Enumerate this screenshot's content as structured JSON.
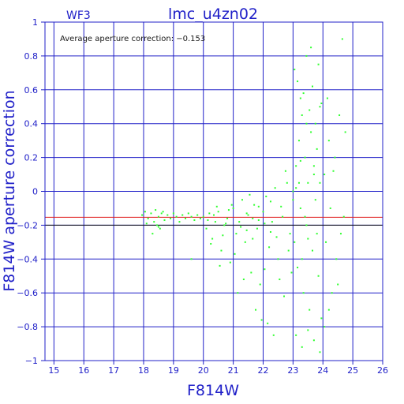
{
  "chart_data": {
    "type": "scatter",
    "panel_label": "WF3",
    "title": "lmc_u4zn02",
    "annotation": "Average aperture correction: −0.153",
    "xlabel": "F814W",
    "ylabel": "F814W aperture correction",
    "xlim": [
      14.7,
      26.0
    ],
    "ylim": [
      -1.0,
      1.0
    ],
    "x_ticks": [
      15,
      16,
      17,
      18,
      19,
      20,
      21,
      22,
      23,
      24,
      25,
      26
    ],
    "y_ticks": [
      -1,
      -0.8,
      -0.6,
      -0.4,
      -0.2,
      0,
      0.2,
      0.4,
      0.6,
      0.8,
      1
    ],
    "y_tick_labels": [
      "−1",
      "−0.8",
      "−0.6",
      "−0.4",
      "−0.2",
      "0",
      "0.2",
      "0.4",
      "0.6",
      "0.8",
      "1"
    ],
    "grid": true,
    "reference_lines": [
      {
        "y": -0.153,
        "color": "#e02020"
      },
      {
        "y": -0.2,
        "color": "#1a1a1a"
      }
    ],
    "colors": {
      "axes": "#2020c8",
      "points": "#30ff30"
    },
    "points": [
      [
        17.95,
        -0.14
      ],
      [
        18.05,
        -0.12
      ],
      [
        18.15,
        -0.16
      ],
      [
        18.25,
        -0.13
      ],
      [
        18.35,
        -0.18
      ],
      [
        18.4,
        -0.11
      ],
      [
        18.45,
        -0.2
      ],
      [
        18.5,
        -0.15
      ],
      [
        18.55,
        -0.22
      ],
      [
        18.6,
        -0.13
      ],
      [
        18.7,
        -0.17
      ],
      [
        18.8,
        -0.14
      ],
      [
        18.9,
        -0.16
      ],
      [
        19.0,
        -0.13
      ],
      [
        19.1,
        -0.15
      ],
      [
        19.2,
        -0.18
      ],
      [
        19.3,
        -0.14
      ],
      [
        19.4,
        -0.16
      ],
      [
        19.5,
        -0.13
      ],
      [
        19.6,
        -0.15
      ],
      [
        19.7,
        -0.17
      ],
      [
        19.8,
        -0.14
      ],
      [
        19.9,
        -0.16
      ],
      [
        18.3,
        -0.25
      ],
      [
        18.5,
        -0.21
      ],
      [
        19.6,
        -0.4
      ],
      [
        18.1,
        -0.19
      ],
      [
        18.65,
        -0.12
      ],
      [
        20.0,
        -0.15
      ],
      [
        20.1,
        -0.22
      ],
      [
        20.2,
        -0.13
      ],
      [
        20.3,
        -0.28
      ],
      [
        20.4,
        -0.18
      ],
      [
        20.5,
        -0.12
      ],
      [
        20.6,
        -0.35
      ],
      [
        20.7,
        -0.2
      ],
      [
        20.8,
        -0.16
      ],
      [
        20.9,
        -0.42
      ],
      [
        21.0,
        -0.1
      ],
      [
        21.1,
        -0.25
      ],
      [
        21.2,
        -0.18
      ],
      [
        21.3,
        -0.05
      ],
      [
        21.4,
        -0.3
      ],
      [
        21.5,
        -0.14
      ],
      [
        21.6,
        -0.48
      ],
      [
        21.7,
        -0.08
      ],
      [
        21.8,
        -0.22
      ],
      [
        21.9,
        -0.55
      ],
      [
        22.0,
        -0.12
      ],
      [
        22.1,
        -0.03
      ],
      [
        22.2,
        -0.33
      ],
      [
        22.3,
        -0.18
      ],
      [
        22.4,
        0.02
      ],
      [
        22.5,
        -0.4
      ],
      [
        22.6,
        -0.09
      ],
      [
        22.7,
        -0.62
      ],
      [
        22.8,
        0.05
      ],
      [
        22.9,
        -0.25
      ],
      [
        20.25,
        -0.31
      ],
      [
        20.45,
        -0.09
      ],
      [
        20.65,
        -0.26
      ],
      [
        20.85,
        -0.11
      ],
      [
        21.05,
        -0.37
      ],
      [
        21.25,
        -0.21
      ],
      [
        21.45,
        -0.13
      ],
      [
        21.65,
        -0.28
      ],
      [
        21.85,
        -0.17
      ],
      [
        22.05,
        -0.46
      ],
      [
        22.25,
        -0.06
      ],
      [
        22.45,
        -0.27
      ],
      [
        22.65,
        -0.15
      ],
      [
        22.85,
        -0.35
      ],
      [
        21.15,
        -0.6
      ],
      [
        21.75,
        -0.7
      ],
      [
        22.15,
        -0.78
      ],
      [
        21.95,
        -0.76
      ],
      [
        22.35,
        -0.85
      ],
      [
        22.55,
        -0.52
      ],
      [
        20.55,
        -0.44
      ],
      [
        21.35,
        -0.52
      ],
      [
        20.95,
        -0.08
      ],
      [
        21.55,
        -0.02
      ],
      [
        22.75,
        0.12
      ],
      [
        22.95,
        -0.48
      ],
      [
        20.15,
        -0.17
      ],
      [
        20.35,
        -0.14
      ],
      [
        20.75,
        -0.19
      ],
      [
        21.45,
        -0.23
      ],
      [
        21.65,
        -0.16
      ],
      [
        21.85,
        -0.09
      ],
      [
        22.05,
        -0.19
      ],
      [
        22.25,
        -0.24
      ],
      [
        23.0,
        0.0
      ],
      [
        23.05,
        -0.3
      ],
      [
        23.1,
        0.15
      ],
      [
        23.15,
        -0.45
      ],
      [
        23.2,
        0.3
      ],
      [
        23.25,
        -0.1
      ],
      [
        23.3,
        0.45
      ],
      [
        23.35,
        -0.6
      ],
      [
        23.4,
        0.2
      ],
      [
        23.45,
        -0.2
      ],
      [
        23.5,
        0.05
      ],
      [
        23.55,
        -0.7
      ],
      [
        23.6,
        0.35
      ],
      [
        23.65,
        -0.35
      ],
      [
        23.7,
        0.1
      ],
      [
        23.75,
        -0.05
      ],
      [
        23.8,
        0.25
      ],
      [
        23.85,
        -0.5
      ],
      [
        23.9,
        0.5
      ],
      [
        23.95,
        -0.75
      ],
      [
        23.05,
        0.72
      ],
      [
        23.15,
        0.65
      ],
      [
        23.25,
        0.55
      ],
      [
        23.35,
        0.58
      ],
      [
        23.45,
        0.8
      ],
      [
        23.55,
        0.48
      ],
      [
        23.65,
        0.62
      ],
      [
        23.75,
        0.4
      ],
      [
        23.85,
        0.75
      ],
      [
        23.95,
        0.52
      ],
      [
        23.1,
        -0.85
      ],
      [
        23.3,
        -0.92
      ],
      [
        23.5,
        -0.82
      ],
      [
        23.7,
        -0.88
      ],
      [
        23.9,
        -0.95
      ],
      [
        24.05,
        0.1
      ],
      [
        24.1,
        -0.3
      ],
      [
        24.2,
        0.3
      ],
      [
        24.3,
        -0.6
      ],
      [
        24.4,
        0.2
      ],
      [
        24.55,
        0.45
      ],
      [
        24.65,
        0.9
      ],
      [
        24.75,
        0.35
      ],
      [
        24.6,
        -0.25
      ],
      [
        24.45,
        -0.4
      ],
      [
        24.15,
        0.55
      ],
      [
        24.25,
        -0.1
      ],
      [
        24.35,
        0.12
      ],
      [
        24.5,
        -0.55
      ],
      [
        24.7,
        -0.15
      ],
      [
        24.05,
        -0.8
      ],
      [
        24.2,
        -0.7
      ],
      [
        23.6,
        0.85
      ],
      [
        23.2,
        0.05
      ],
      [
        23.4,
        -0.15
      ],
      [
        23.8,
        -0.25
      ],
      [
        23.0,
        -0.05
      ],
      [
        23.1,
        0.02
      ],
      [
        23.3,
        -0.4
      ],
      [
        23.5,
        -0.28
      ],
      [
        23.7,
        0.15
      ],
      [
        23.9,
        0.05
      ],
      [
        23.25,
        0.18
      ],
      [
        23.45,
        0.4
      ]
    ]
  }
}
